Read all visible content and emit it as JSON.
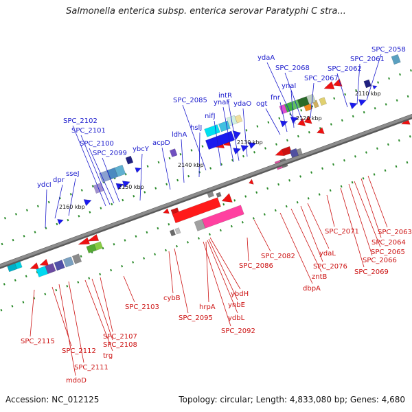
{
  "title": "Salmonella enterica subsp. enterica serovar Paratyphi C stra...",
  "footer": {
    "accession": "Accession: NC_012125",
    "summary": "Topology: circular; Length: 4,833,080 bp; Genes: 4,680"
  },
  "colors": {
    "forward_label": "#1a1acc",
    "reverse_label": "#cc1111",
    "backbone": "#8c8c8c",
    "tick": "#2a8a2a"
  },
  "scale_labels": [
    "2110 kbp",
    "2120 kbp",
    "2130 kbp",
    "2140 kbp",
    "2150 kbp",
    "2160 kbp"
  ],
  "forward_genes": [
    "ydcI",
    "dpr",
    "sseJ",
    "SPC_2102",
    "SPC_2101",
    "SPC_2100",
    "SPC_2099",
    "ybcY",
    "acpD",
    "ldhA",
    "hslJ",
    "SPC_2085",
    "nifJ",
    "ynaF",
    "intR",
    "ydaO",
    "ogt",
    "fnr",
    "ynaI",
    "ydaA",
    "SPC_2068",
    "SPC_2067",
    "SPC_2062",
    "SPC_2061",
    "SPC_2058"
  ],
  "reverse_genes": [
    "SPC_2115",
    "SPC_2112",
    "mdoD",
    "SPC_2111",
    "trg",
    "SPC_2108",
    "SPC_2107",
    "SPC_2103",
    "cybB",
    "SPC_2095",
    "hrpA",
    "ybdH",
    "ynbE",
    "ydbL",
    "SPC_2092",
    "SPC_2086",
    "SPC_2082",
    "dbpA",
    "zntB",
    "SPC_2076",
    "ydaL",
    "SPC_2071",
    "SPC_2069",
    "SPC_2066",
    "SPC_2065",
    "SPC_2064",
    "SPC_2063"
  ]
}
